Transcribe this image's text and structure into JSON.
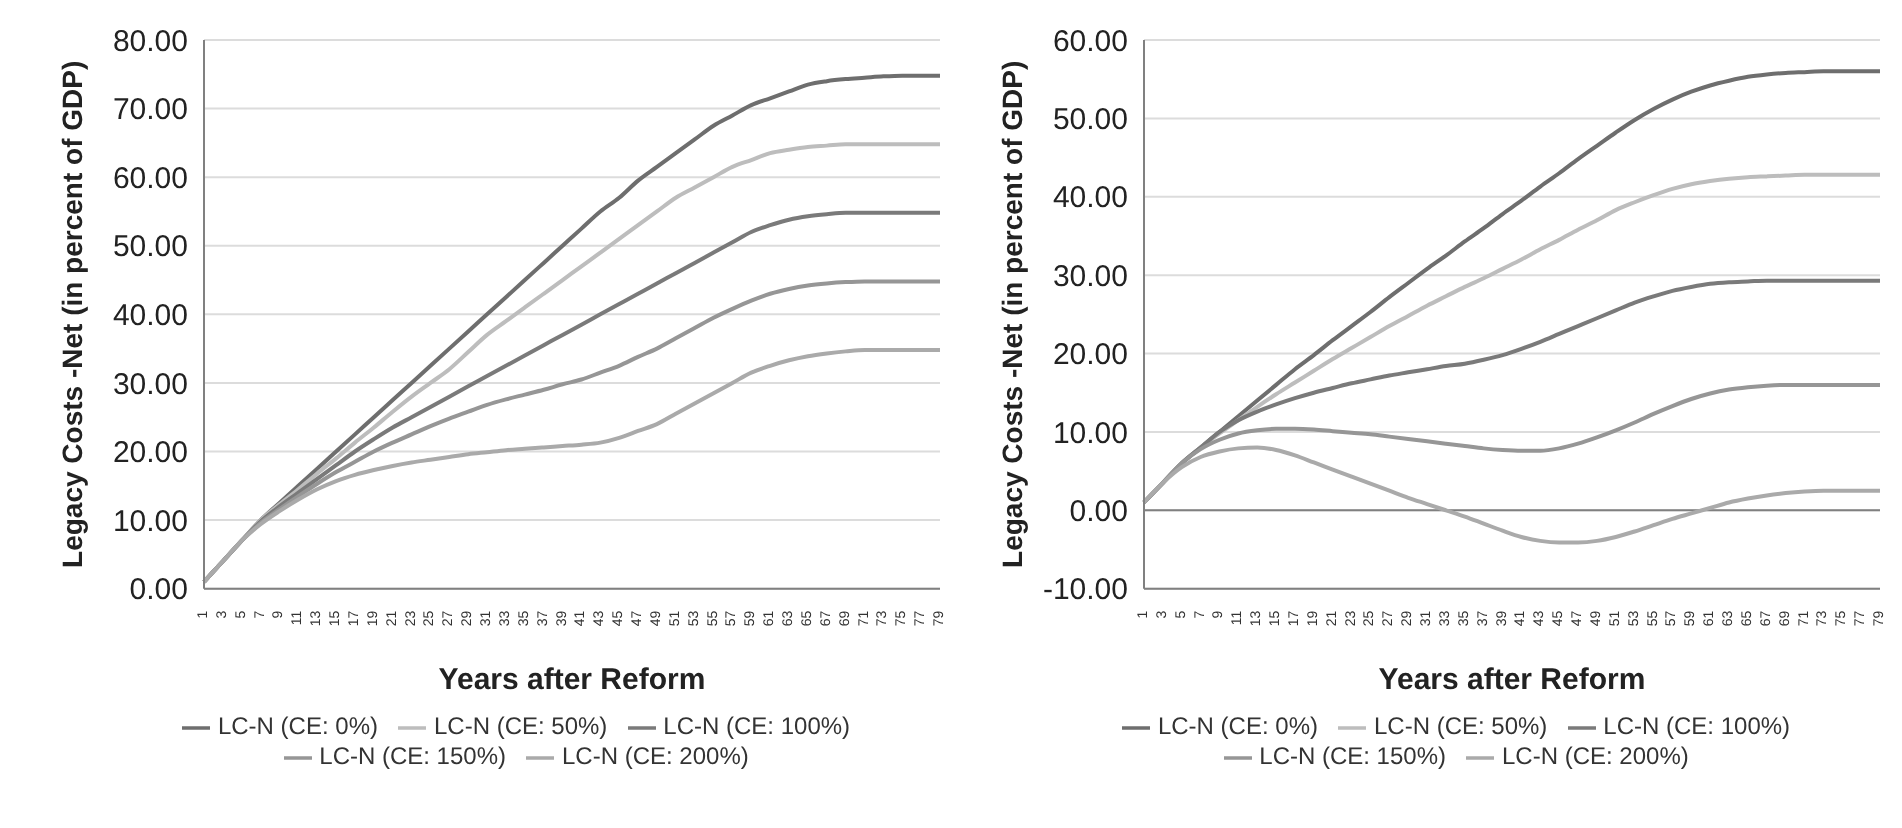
{
  "chart_data": [
    {
      "type": "line",
      "xlabel": "Years after Reform",
      "ylabel": "Legacy Costs -Net (in percent of GDP)",
      "categories": [
        "1",
        "3",
        "5",
        "7",
        "9",
        "11",
        "13",
        "15",
        "17",
        "19",
        "21",
        "23",
        "25",
        "27",
        "29",
        "31",
        "33",
        "35",
        "37",
        "39",
        "41",
        "43",
        "45",
        "47",
        "49",
        "51",
        "53",
        "55",
        "57",
        "59",
        "61",
        "63",
        "65",
        "67",
        "69",
        "71",
        "73",
        "75",
        "77",
        "79"
      ],
      "series": [
        {
          "name": "LC-N (CE: 0%)",
          "color": "#6e6e6e",
          "values": [
            1,
            4,
            7,
            10,
            12.5,
            15,
            17.5,
            20,
            22.5,
            25,
            27.5,
            30,
            32.5,
            35,
            37.5,
            40,
            42.5,
            45,
            47.5,
            50,
            52.5,
            55,
            57,
            59.5,
            61.5,
            63.5,
            65.5,
            67.5,
            69,
            70.5,
            71.5,
            72.5,
            73.5,
            74,
            74.3,
            74.5,
            74.7,
            74.8,
            74.8,
            74.8
          ]
        },
        {
          "name": "LC-N (CE: 50%)",
          "color": "#bdbdbd",
          "values": [
            1,
            4,
            7,
            10,
            12.3,
            14.5,
            16.8,
            19,
            21.3,
            23.5,
            25.8,
            28,
            30,
            32,
            34.5,
            37,
            39,
            41,
            43,
            45,
            47,
            49,
            51,
            53,
            55,
            57,
            58.5,
            60,
            61.5,
            62.5,
            63.5,
            64,
            64.4,
            64.6,
            64.8,
            64.8,
            64.8,
            64.8,
            64.8,
            64.8
          ]
        },
        {
          "name": "LC-N (CE: 100%)",
          "color": "#7a7a7a",
          "values": [
            1,
            4,
            7,
            9.8,
            12,
            14,
            16,
            18,
            20,
            21.8,
            23.5,
            25,
            26.5,
            28,
            29.5,
            31,
            32.5,
            34,
            35.5,
            37,
            38.5,
            40,
            41.5,
            43,
            44.5,
            46,
            47.5,
            49,
            50.5,
            52,
            53,
            53.8,
            54.3,
            54.6,
            54.8,
            54.8,
            54.8,
            54.8,
            54.8,
            54.8
          ]
        },
        {
          "name": "LC-N (CE: 150%)",
          "color": "#969696",
          "values": [
            1,
            4,
            7,
            9.6,
            11.6,
            13.5,
            15.3,
            17,
            18.5,
            20,
            21.3,
            22.5,
            23.7,
            24.8,
            25.8,
            26.8,
            27.6,
            28.3,
            29,
            29.8,
            30.5,
            31.5,
            32.5,
            33.8,
            35,
            36.5,
            38,
            39.5,
            40.8,
            42,
            43,
            43.7,
            44.2,
            44.5,
            44.7,
            44.8,
            44.8,
            44.8,
            44.8,
            44.8
          ]
        },
        {
          "name": "LC-N (CE: 200%)",
          "color": "#aaaaaa",
          "values": [
            1,
            4,
            7,
            9.4,
            11.3,
            13,
            14.5,
            15.7,
            16.6,
            17.3,
            17.9,
            18.4,
            18.8,
            19.2,
            19.6,
            19.9,
            20.2,
            20.4,
            20.6,
            20.8,
            21,
            21.3,
            22,
            23,
            24,
            25.5,
            27,
            28.5,
            30,
            31.5,
            32.5,
            33.3,
            33.9,
            34.3,
            34.6,
            34.8,
            34.8,
            34.8,
            34.8,
            34.8
          ]
        }
      ],
      "ylim": [
        0,
        80
      ],
      "yticks": [
        {
          "value": 0,
          "label": "0.00"
        },
        {
          "value": 10,
          "label": "10.00"
        },
        {
          "value": 20,
          "label": "20.00"
        },
        {
          "value": 30,
          "label": "30.00"
        },
        {
          "value": 40,
          "label": "40.00"
        },
        {
          "value": 50,
          "label": "50.00"
        },
        {
          "value": 60,
          "label": "60.00"
        },
        {
          "value": 70,
          "label": "70.00"
        },
        {
          "value": 80,
          "label": "80.00"
        }
      ],
      "grid": "y",
      "legend": "bottom"
    },
    {
      "type": "line",
      "xlabel": "Years after Reform",
      "ylabel": "Legacy Costs -Net (in percent of GDP)",
      "categories": [
        "1",
        "3",
        "5",
        "7",
        "9",
        "11",
        "13",
        "15",
        "17",
        "19",
        "21",
        "23",
        "25",
        "27",
        "29",
        "31",
        "33",
        "35",
        "37",
        "39",
        "41",
        "43",
        "45",
        "47",
        "49",
        "51",
        "53",
        "55",
        "57",
        "59",
        "61",
        "63",
        "65",
        "67",
        "69",
        "71",
        "73",
        "75",
        "77",
        "79"
      ],
      "series": [
        {
          "name": "LC-N (CE: 0%)",
          "color": "#6e6e6e",
          "values": [
            1,
            3.5,
            6,
            8,
            10,
            12,
            14,
            16,
            18,
            19.8,
            21.7,
            23.5,
            25.3,
            27.2,
            29,
            30.8,
            32.5,
            34.3,
            36,
            37.8,
            39.5,
            41.3,
            43,
            44.8,
            46.5,
            48.2,
            49.8,
            51.2,
            52.4,
            53.4,
            54.2,
            54.8,
            55.3,
            55.6,
            55.8,
            55.9,
            56,
            56,
            56,
            56
          ]
        },
        {
          "name": "LC-N (CE: 50%)",
          "color": "#bdbdbd",
          "values": [
            1,
            3.5,
            6,
            8,
            9.8,
            11.5,
            13.2,
            14.8,
            16.3,
            17.8,
            19.3,
            20.7,
            22.1,
            23.5,
            24.8,
            26.1,
            27.3,
            28.5,
            29.6,
            30.8,
            32,
            33.3,
            34.5,
            35.8,
            37,
            38.3,
            39.3,
            40.2,
            41,
            41.6,
            42,
            42.3,
            42.5,
            42.6,
            42.7,
            42.8,
            42.8,
            42.8,
            42.8,
            42.8
          ]
        },
        {
          "name": "LC-N (CE: 100%)",
          "color": "#7a7a7a",
          "values": [
            1,
            3.5,
            6,
            8,
            10,
            11.5,
            12.6,
            13.5,
            14.3,
            15,
            15.6,
            16.2,
            16.7,
            17.2,
            17.6,
            18,
            18.4,
            18.7,
            19.2,
            19.8,
            20.6,
            21.5,
            22.5,
            23.5,
            24.5,
            25.5,
            26.5,
            27.3,
            28,
            28.5,
            28.9,
            29.1,
            29.2,
            29.3,
            29.3,
            29.3,
            29.3,
            29.3,
            29.3,
            29.3
          ]
        },
        {
          "name": "LC-N (CE: 150%)",
          "color": "#969696",
          "values": [
            1,
            3.5,
            6,
            7.8,
            9,
            9.8,
            10.2,
            10.4,
            10.4,
            10.3,
            10.1,
            9.9,
            9.7,
            9.4,
            9.1,
            8.8,
            8.5,
            8.2,
            7.9,
            7.7,
            7.6,
            7.6,
            7.9,
            8.5,
            9.3,
            10.2,
            11.2,
            12.3,
            13.3,
            14.2,
            14.9,
            15.4,
            15.7,
            15.9,
            16,
            16,
            16,
            16,
            16,
            16
          ]
        },
        {
          "name": "LC-N (CE: 200%)",
          "color": "#aaaaaa",
          "values": [
            1,
            3.5,
            5.5,
            6.8,
            7.5,
            7.9,
            8,
            7.7,
            7,
            6.1,
            5.2,
            4.3,
            3.4,
            2.5,
            1.6,
            0.8,
            0,
            -0.8,
            -1.7,
            -2.6,
            -3.4,
            -3.9,
            -4.1,
            -4.1,
            -3.9,
            -3.4,
            -2.7,
            -1.9,
            -1.1,
            -0.4,
            0.3,
            1,
            1.5,
            1.9,
            2.2,
            2.4,
            2.5,
            2.5,
            2.5,
            2.5
          ]
        }
      ],
      "ylim": [
        -10,
        60
      ],
      "yticks": [
        {
          "value": -10,
          "label": "-10.00"
        },
        {
          "value": 0,
          "label": "0.00"
        },
        {
          "value": 10,
          "label": "10.00"
        },
        {
          "value": 20,
          "label": "20.00"
        },
        {
          "value": 30,
          "label": "30.00"
        },
        {
          "value": 40,
          "label": "40.00"
        },
        {
          "value": 50,
          "label": "50.00"
        },
        {
          "value": 60,
          "label": "60.00"
        }
      ],
      "grid": "y",
      "legend": "bottom",
      "ref_lines": [
        {
          "axis": "y",
          "value": 0,
          "color": "#808080"
        }
      ]
    }
  ]
}
